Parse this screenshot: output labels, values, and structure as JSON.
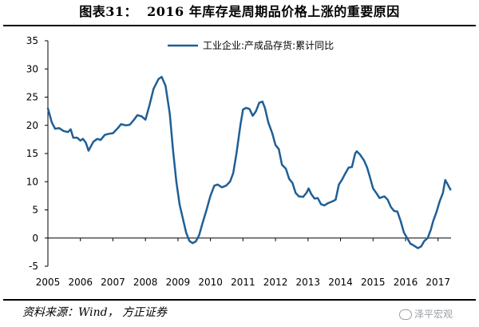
{
  "title": "图表31：  2016 年库存是周期品价格上涨的重要原因",
  "source": "资料来源：Wind， 方正证券",
  "watermark": "泽平宏观",
  "chart_data": {
    "type": "line",
    "title": "",
    "xlabel": "",
    "ylabel": "",
    "ylim": [
      -5,
      35
    ],
    "yticks": [
      -5,
      0,
      5,
      10,
      15,
      20,
      25,
      30,
      35
    ],
    "xlim": [
      2005,
      2017.4
    ],
    "xticks": [
      "2005",
      "2006",
      "2007",
      "2008",
      "2009",
      "2010",
      "2011",
      "2012",
      "2013",
      "2014",
      "2015",
      "2016",
      "2017"
    ],
    "grid": false,
    "legend_position": "top",
    "series": [
      {
        "name": "工业企业:产成品存货:累计同比",
        "color": "#1f5f95",
        "points": [
          [
            2005.0,
            23.0
          ],
          [
            2005.12,
            20.5
          ],
          [
            2005.22,
            19.4
          ],
          [
            2005.35,
            19.5
          ],
          [
            2005.48,
            19.0
          ],
          [
            2005.62,
            18.8
          ],
          [
            2005.7,
            19.3
          ],
          [
            2005.78,
            17.8
          ],
          [
            2005.9,
            17.8
          ],
          [
            2006.0,
            17.3
          ],
          [
            2006.08,
            17.6
          ],
          [
            2006.17,
            16.9
          ],
          [
            2006.25,
            15.5
          ],
          [
            2006.4,
            17.1
          ],
          [
            2006.52,
            17.6
          ],
          [
            2006.62,
            17.4
          ],
          [
            2006.75,
            18.3
          ],
          [
            2006.88,
            18.5
          ],
          [
            2007.0,
            18.6
          ],
          [
            2007.15,
            19.5
          ],
          [
            2007.25,
            20.2
          ],
          [
            2007.4,
            20.0
          ],
          [
            2007.52,
            20.1
          ],
          [
            2007.65,
            21.0
          ],
          [
            2007.75,
            21.8
          ],
          [
            2007.88,
            21.6
          ],
          [
            2008.0,
            21.0
          ],
          [
            2008.12,
            23.5
          ],
          [
            2008.25,
            26.5
          ],
          [
            2008.4,
            28.2
          ],
          [
            2008.5,
            28.6
          ],
          [
            2008.62,
            27.0
          ],
          [
            2008.75,
            22.0
          ],
          [
            2008.85,
            15.5
          ],
          [
            2008.95,
            10.0
          ],
          [
            2009.05,
            6.0
          ],
          [
            2009.15,
            3.5
          ],
          [
            2009.25,
            1.0
          ],
          [
            2009.35,
            -0.5
          ],
          [
            2009.45,
            -0.9
          ],
          [
            2009.55,
            -0.6
          ],
          [
            2009.65,
            0.5
          ],
          [
            2009.75,
            2.5
          ],
          [
            2009.88,
            5.0
          ],
          [
            2010.0,
            7.5
          ],
          [
            2010.12,
            9.3
          ],
          [
            2010.22,
            9.5
          ],
          [
            2010.35,
            9.0
          ],
          [
            2010.48,
            9.3
          ],
          [
            2010.6,
            10.0
          ],
          [
            2010.7,
            11.5
          ],
          [
            2010.8,
            15.0
          ],
          [
            2010.92,
            20.0
          ],
          [
            2011.0,
            22.8
          ],
          [
            2011.1,
            23.1
          ],
          [
            2011.2,
            22.9
          ],
          [
            2011.3,
            21.7
          ],
          [
            2011.4,
            22.5
          ],
          [
            2011.5,
            24.0
          ],
          [
            2011.6,
            24.2
          ],
          [
            2011.68,
            23.0
          ],
          [
            2011.78,
            20.5
          ],
          [
            2011.9,
            18.6
          ],
          [
            2012.0,
            16.5
          ],
          [
            2012.1,
            15.8
          ],
          [
            2012.2,
            13.0
          ],
          [
            2012.32,
            12.3
          ],
          [
            2012.42,
            10.5
          ],
          [
            2012.52,
            9.8
          ],
          [
            2012.62,
            8.0
          ],
          [
            2012.72,
            7.4
          ],
          [
            2012.85,
            7.3
          ],
          [
            2012.95,
            8.0
          ],
          [
            2013.02,
            8.8
          ],
          [
            2013.1,
            7.8
          ],
          [
            2013.2,
            7.0
          ],
          [
            2013.3,
            7.1
          ],
          [
            2013.4,
            6.0
          ],
          [
            2013.5,
            5.8
          ],
          [
            2013.62,
            6.2
          ],
          [
            2013.75,
            6.5
          ],
          [
            2013.85,
            6.8
          ],
          [
            2013.95,
            9.5
          ],
          [
            2014.05,
            10.4
          ],
          [
            2014.15,
            11.5
          ],
          [
            2014.25,
            12.5
          ],
          [
            2014.35,
            12.6
          ],
          [
            2014.45,
            15.0
          ],
          [
            2014.5,
            15.4
          ],
          [
            2014.6,
            14.8
          ],
          [
            2014.72,
            13.8
          ],
          [
            2014.82,
            12.5
          ],
          [
            2014.92,
            10.5
          ],
          [
            2015.0,
            8.8
          ],
          [
            2015.1,
            8.0
          ],
          [
            2015.2,
            7.1
          ],
          [
            2015.35,
            7.4
          ],
          [
            2015.45,
            6.8
          ],
          [
            2015.55,
            5.5
          ],
          [
            2015.65,
            4.8
          ],
          [
            2015.75,
            4.7
          ],
          [
            2015.85,
            3.0
          ],
          [
            2015.95,
            1.0
          ],
          [
            2016.05,
            0.0
          ],
          [
            2016.15,
            -1.0
          ],
          [
            2016.22,
            -1.2
          ],
          [
            2016.3,
            -1.5
          ],
          [
            2016.38,
            -1.8
          ],
          [
            2016.48,
            -1.5
          ],
          [
            2016.58,
            -0.5
          ],
          [
            2016.68,
            0.0
          ],
          [
            2016.78,
            1.5
          ],
          [
            2016.85,
            3.0
          ],
          [
            2016.95,
            4.6
          ],
          [
            2017.05,
            6.5
          ],
          [
            2017.15,
            8.0
          ],
          [
            2017.22,
            10.3
          ],
          [
            2017.3,
            9.5
          ],
          [
            2017.38,
            8.6
          ]
        ]
      }
    ]
  }
}
